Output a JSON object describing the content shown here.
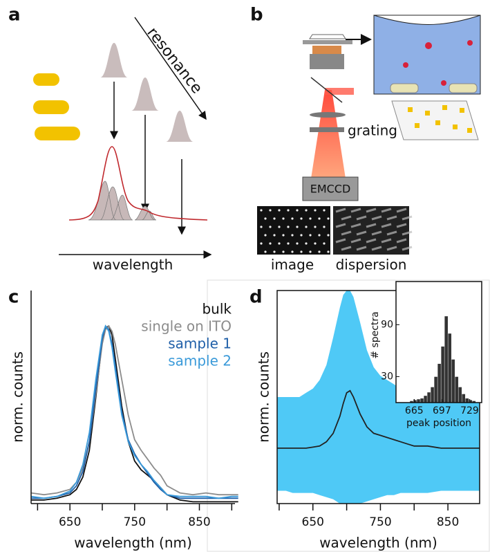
{
  "panels": {
    "a": {
      "label": "a",
      "arrow_label": "resonance",
      "axis_label": "wavelength"
    },
    "b": {
      "label": "b",
      "grating": "grating",
      "detector": "EMCCD",
      "image": "image",
      "dispersion": "dispersion"
    }
  },
  "chart_data": [
    {
      "type": "line",
      "panel_label": "c",
      "xlabel": "wavelength (nm)",
      "ylabel": "norm. counts",
      "x": [
        590,
        610,
        630,
        650,
        660,
        670,
        680,
        690,
        700,
        705,
        710,
        715,
        720,
        730,
        740,
        750,
        760,
        770,
        780,
        790,
        800,
        820,
        840,
        860,
        880,
        900,
        910
      ],
      "xlim": [
        590,
        905
      ],
      "xticks": [
        650,
        750,
        850
      ],
      "minor_xticks": [
        600,
        700,
        800,
        900
      ],
      "ylim": [
        0,
        1.2
      ],
      "series": [
        {
          "name": "bulk",
          "color": "#111111",
          "values": [
            0.02,
            0.02,
            0.03,
            0.05,
            0.08,
            0.15,
            0.3,
            0.6,
            0.92,
            0.99,
            1.0,
            0.95,
            0.82,
            0.55,
            0.35,
            0.24,
            0.19,
            0.16,
            0.13,
            0.09,
            0.05,
            0.02,
            0.01,
            0.01,
            0.01,
            0.01,
            0.01
          ]
        },
        {
          "name": "single on ITO",
          "color": "#8c8c8c",
          "values": [
            0.06,
            0.05,
            0.06,
            0.08,
            0.12,
            0.2,
            0.35,
            0.62,
            0.9,
            0.98,
            1.0,
            0.97,
            0.9,
            0.7,
            0.5,
            0.36,
            0.3,
            0.25,
            0.2,
            0.16,
            0.1,
            0.06,
            0.05,
            0.06,
            0.05,
            0.05,
            0.05
          ]
        },
        {
          "name": "sample 1",
          "color": "#1f5fa8",
          "values": [
            0.03,
            0.03,
            0.04,
            0.06,
            0.1,
            0.18,
            0.35,
            0.65,
            0.93,
            1.0,
            0.98,
            0.9,
            0.78,
            0.52,
            0.36,
            0.28,
            0.22,
            0.17,
            0.12,
            0.08,
            0.05,
            0.03,
            0.03,
            0.03,
            0.03,
            0.03,
            0.03
          ]
        },
        {
          "name": "sample 2",
          "color": "#3a9ad9",
          "values": [
            0.04,
            0.03,
            0.04,
            0.07,
            0.12,
            0.22,
            0.4,
            0.7,
            0.95,
            1.0,
            0.97,
            0.88,
            0.75,
            0.5,
            0.35,
            0.27,
            0.22,
            0.18,
            0.13,
            0.09,
            0.05,
            0.04,
            0.04,
            0.04,
            0.03,
            0.04,
            0.04
          ]
        }
      ]
    },
    {
      "type": "line",
      "panel_label": "d",
      "xlabel": "wavelength (nm)",
      "ylabel": "norm. counts",
      "x": [
        597,
        610,
        620,
        630,
        640,
        650,
        660,
        670,
        680,
        690,
        695,
        700,
        705,
        710,
        720,
        730,
        740,
        750,
        760,
        770,
        780,
        790,
        800,
        820,
        840,
        860,
        880,
        897
      ],
      "xlim": [
        597,
        897
      ],
      "xticks": [
        650,
        750,
        850
      ],
      "minor_xticks": [
        600,
        700,
        800
      ],
      "ylim": [
        0,
        1
      ],
      "band": {
        "color": "#3cc3f5",
        "upper": [
          0.5,
          0.5,
          0.5,
          0.5,
          0.52,
          0.54,
          0.58,
          0.65,
          0.78,
          0.92,
          0.98,
          1.0,
          1.0,
          0.97,
          0.85,
          0.72,
          0.64,
          0.6,
          0.58,
          0.56,
          0.54,
          0.52,
          0.5,
          0.5,
          0.5,
          0.5,
          0.5,
          0.5
        ],
        "lower": [
          0.06,
          0.06,
          0.05,
          0.05,
          0.05,
          0.05,
          0.04,
          0.03,
          0.02,
          0,
          0,
          0,
          0,
          0,
          0,
          0.01,
          0.02,
          0.03,
          0.04,
          0.04,
          0.05,
          0.05,
          0.05,
          0.05,
          0.06,
          0.06,
          0.06,
          0.06
        ]
      },
      "series": [
        {
          "color": "#222222",
          "values": [
            0.26,
            0.26,
            0.26,
            0.26,
            0.26,
            0.265,
            0.27,
            0.29,
            0.33,
            0.41,
            0.47,
            0.52,
            0.53,
            0.5,
            0.42,
            0.36,
            0.33,
            0.32,
            0.31,
            0.3,
            0.29,
            0.28,
            0.27,
            0.27,
            0.26,
            0.26,
            0.26,
            0.26
          ]
        }
      ]
    },
    {
      "type": "histogram",
      "xlabel": "peak position",
      "ylabel": "# spectra",
      "color": "#333333",
      "bins": [
        660,
        664,
        668,
        672,
        676,
        680,
        684,
        688,
        692,
        696,
        700,
        704,
        708,
        712,
        716,
        720,
        724,
        728,
        732,
        736
      ],
      "values": [
        2,
        3,
        4,
        5,
        8,
        12,
        18,
        30,
        45,
        65,
        100,
        80,
        50,
        30,
        18,
        10,
        5,
        3,
        2
      ],
      "xlim": [
        644,
        743
      ],
      "xticks": [
        665,
        697,
        729
      ],
      "ylim": [
        0,
        140
      ],
      "yticks": [
        30,
        90
      ]
    }
  ]
}
